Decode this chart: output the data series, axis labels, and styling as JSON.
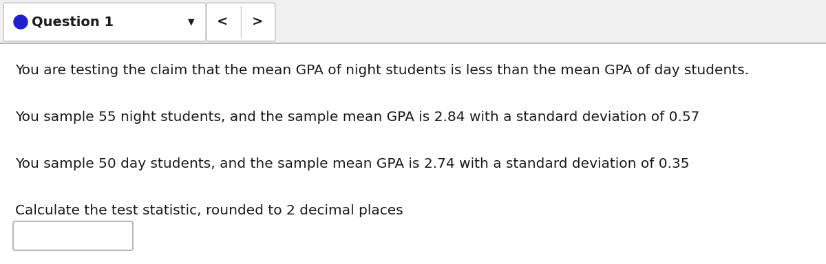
{
  "header_text": "Question 1",
  "header_bg": "#ffffff",
  "header_border": "#cccccc",
  "header_dot_color": "#1f1fd0",
  "nav_left": "<",
  "nav_right": ">",
  "line1": "You are testing the claim that the mean GPA of night students is less than the mean GPA of day students.",
  "line2": "You sample 55 night students, and the sample mean GPA is 2.84 with a standard deviation of 0.57",
  "line3": "You sample 50 day students, and the sample mean GPA is 2.74 with a standard deviation of 0.35",
  "line4": "Calculate the test statistic, rounded to 2 decimal places",
  "bg_color": "#f5f5f5",
  "content_bg": "#ffffff",
  "text_color": "#1a1a1a",
  "separator_color": "#bbbbbb",
  "font_size_body": 14.5,
  "font_size_header": 14.0,
  "input_box_color": "#e8e8e8"
}
